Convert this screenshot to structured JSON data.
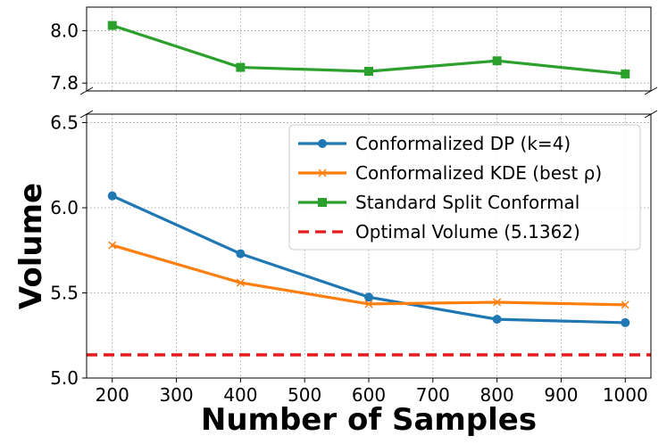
{
  "chart_data": {
    "type": "line",
    "broken_y_axis": true,
    "x": [
      200,
      400,
      600,
      800,
      1000
    ],
    "xlabel": "Number of Samples",
    "ylabel": "Volume",
    "xlim": [
      160,
      1040
    ],
    "xticks": [
      "200",
      "300",
      "400",
      "500",
      "600",
      "700",
      "800",
      "900",
      "1000"
    ],
    "top_panel": {
      "ylim": [
        7.77,
        8.09
      ],
      "yticks": [
        "7.8",
        "8.0"
      ]
    },
    "bottom_panel": {
      "ylim": [
        5.0,
        6.55
      ],
      "yticks": [
        "5.0",
        "5.5",
        "6.0",
        "6.5"
      ]
    },
    "grid": true,
    "legend_position": "upper-right",
    "series": [
      {
        "name": "Conformalized DP (k=4)",
        "color": "#1f77b4",
        "marker": "circle",
        "panel": "bottom",
        "values": [
          6.07,
          5.73,
          5.475,
          5.345,
          5.325
        ]
      },
      {
        "name": "Conformalized KDE (best ρ)",
        "color": "#ff7f0e",
        "marker": "x",
        "panel": "bottom",
        "values": [
          5.78,
          5.56,
          5.435,
          5.445,
          5.43
        ]
      },
      {
        "name": "Standard Split Conformal",
        "color": "#2ca02c",
        "marker": "square",
        "panel": "top",
        "values": [
          8.02,
          7.86,
          7.845,
          7.885,
          7.835
        ]
      }
    ],
    "reference_lines": [
      {
        "name": "Optimal Volume (5.1362)",
        "value": 5.1362,
        "color": "#e41a1c",
        "style": "dashed"
      }
    ]
  }
}
